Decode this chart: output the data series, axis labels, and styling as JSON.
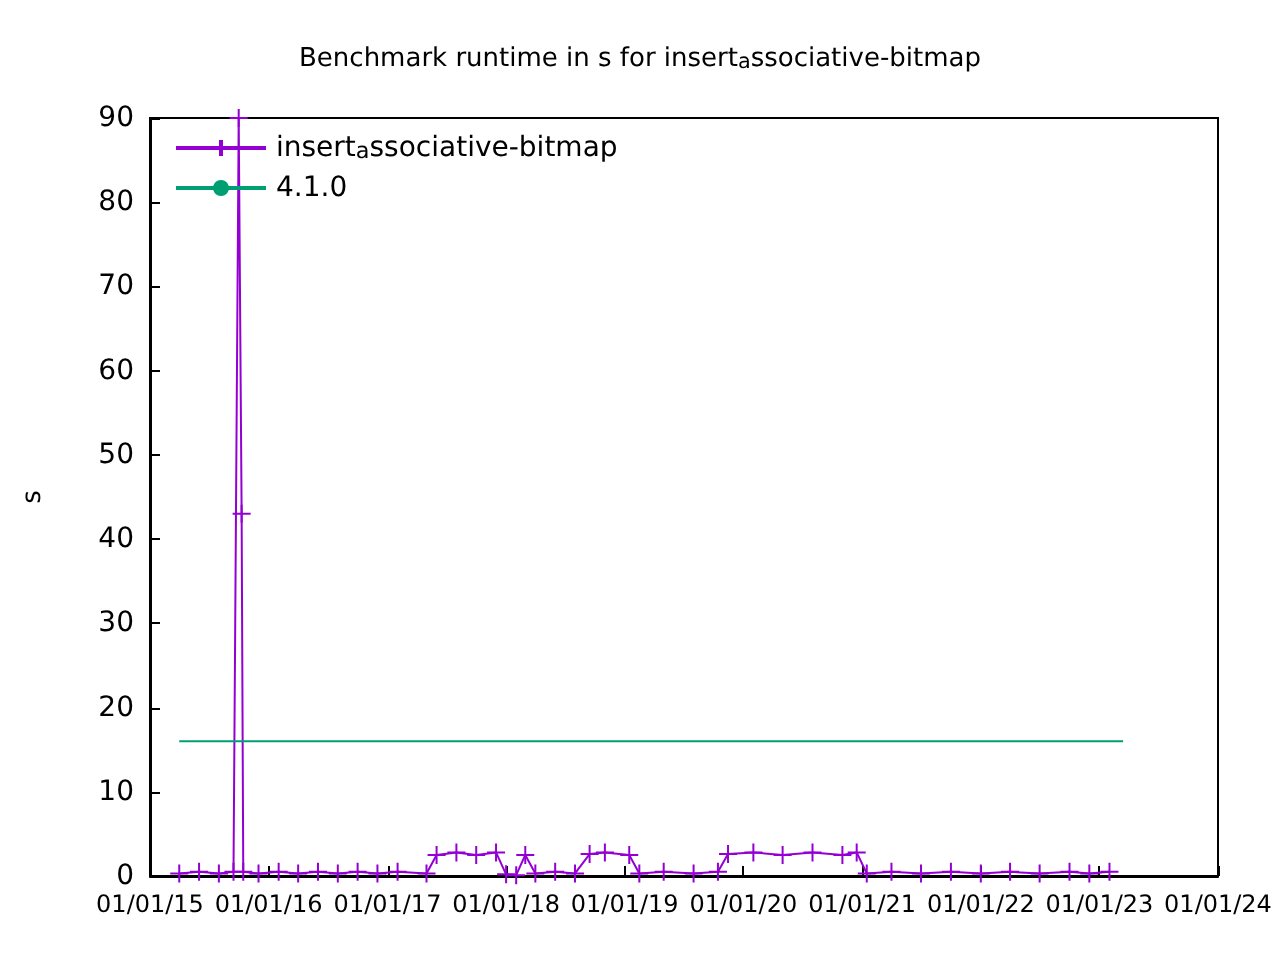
{
  "chart_data": {
    "type": "line",
    "title": "Benchmark runtime in s for insert$_{a}$ssociative-bitmap",
    "ylabel": "s",
    "xlim": [
      "2015-01-01",
      "2024-01-01"
    ],
    "xticks": [
      {
        "value": "2015-01-01",
        "label": "01/01/15"
      },
      {
        "value": "2016-01-01",
        "label": "01/01/16"
      },
      {
        "value": "2017-01-01",
        "label": "01/01/17"
      },
      {
        "value": "2018-01-01",
        "label": "01/01/18"
      },
      {
        "value": "2019-01-01",
        "label": "01/01/19"
      },
      {
        "value": "2020-01-01",
        "label": "01/01/20"
      },
      {
        "value": "2021-01-01",
        "label": "01/01/21"
      },
      {
        "value": "2022-01-01",
        "label": "01/01/22"
      },
      {
        "value": "2023-01-01",
        "label": "01/01/23"
      },
      {
        "value": "2024-01-01",
        "label": "01/01/24"
      }
    ],
    "ylim": [
      0,
      90
    ],
    "yticks": [
      0,
      10,
      20,
      30,
      40,
      50,
      60,
      70,
      80,
      90
    ],
    "grid": false,
    "legend": "top left",
    "series": [
      {
        "name": "insert$_{a}$ssociative-bitmap",
        "color": "#9400d3",
        "marker": "cross",
        "x": [
          "2015-04-01",
          "2015-06-01",
          "2015-08-01",
          "2015-09-15",
          "2015-10-01",
          "2015-10-10",
          "2015-10-15",
          "2015-12-01",
          "2016-02-01",
          "2016-04-01",
          "2016-06-01",
          "2016-08-01",
          "2016-10-01",
          "2016-12-01",
          "2017-02-01",
          "2017-05-01",
          "2017-06-01",
          "2017-08-01",
          "2017-10-01",
          "2017-12-01",
          "2018-01-01",
          "2018-02-01",
          "2018-03-01",
          "2018-04-01",
          "2018-06-01",
          "2018-08-01",
          "2018-09-15",
          "2018-11-01",
          "2019-01-15",
          "2019-02-15",
          "2019-05-01",
          "2019-08-01",
          "2019-10-15",
          "2019-11-15",
          "2020-02-01",
          "2020-05-01",
          "2020-08-01",
          "2020-11-01",
          "2020-12-15",
          "2021-01-15",
          "2021-04-01",
          "2021-07-01",
          "2021-10-01",
          "2022-01-01",
          "2022-04-01",
          "2022-07-01",
          "2022-10-01",
          "2022-12-01",
          "2023-02-01"
        ],
        "values": [
          0.3,
          0.5,
          0.3,
          0.5,
          90,
          43,
          0.5,
          0.3,
          0.5,
          0.3,
          0.5,
          0.3,
          0.5,
          0.3,
          0.5,
          0.3,
          2.5,
          2.8,
          2.5,
          2.8,
          0.2,
          0.1,
          2.5,
          0.3,
          0.5,
          0.3,
          2.6,
          2.8,
          2.5,
          0.3,
          0.5,
          0.3,
          0.5,
          2.6,
          2.8,
          2.5,
          2.8,
          2.5,
          2.8,
          0.3,
          0.5,
          0.3,
          0.5,
          0.3,
          0.5,
          0.3,
          0.5,
          0.3,
          0.5
        ]
      },
      {
        "name": "4.1.0",
        "color": "#009e73",
        "marker": "none",
        "x": [
          "2015-04-01",
          "2023-03-15"
        ],
        "values": [
          16,
          16
        ]
      }
    ]
  }
}
